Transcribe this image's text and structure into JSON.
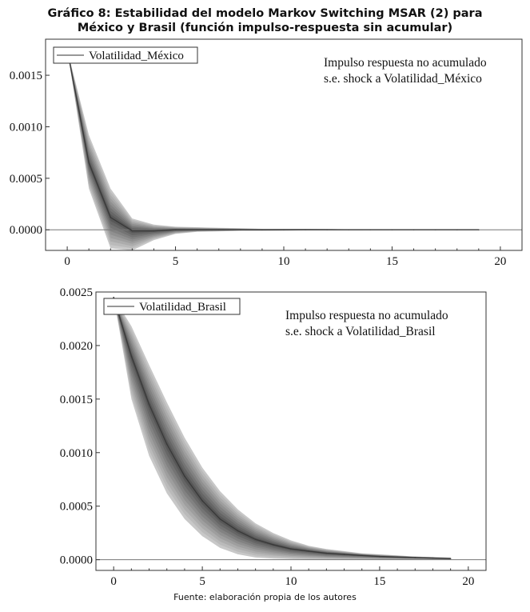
{
  "figure": {
    "title_line1": "Gráfico 8: Estabilidad del modelo Markov Switching MSAR (2) para",
    "title_line2": "México y Brasil (función impulso-respuesta sin acumular)",
    "source": "Fuente: elaboración propia de los autores"
  },
  "chart_data": [
    {
      "type": "area",
      "legend": "Volatilidad_México",
      "legend_position": "top-left",
      "annotation_line1": "Impulso respuesta no acumulado",
      "annotation_line2": "s.e. shock a Volatilidad_México",
      "xlim": [
        -1,
        21
      ],
      "ylim": [
        -0.0002,
        0.00185
      ],
      "xticks": [
        0,
        5,
        10,
        15,
        20
      ],
      "xtick_labels": [
        "0",
        "5",
        "10",
        "15",
        "20"
      ],
      "yticks": [
        0.0,
        0.0005,
        0.001,
        0.0015
      ],
      "ytick_labels": [
        "0.0000",
        "0.0005",
        "0.0010",
        "0.0015"
      ],
      "grid": false,
      "x": [
        0,
        1,
        2,
        3,
        4,
        5,
        6,
        7,
        8,
        9,
        10,
        11,
        12,
        13,
        14,
        15,
        16,
        17,
        18,
        19
      ],
      "values": [
        0.00175,
        0.00065,
        0.00012,
        -1e-05,
        -1e-05,
        0.0,
        0.0,
        0.0,
        0.0,
        0.0,
        0.0,
        0.0,
        0.0,
        0.0,
        0.0,
        0.0,
        0.0,
        0.0,
        0.0,
        0.0
      ],
      "band_upper": [
        0.00175,
        0.00092,
        0.0004,
        0.00011,
        5e-05,
        3e-05,
        2.5e-05,
        2e-05,
        1.5e-05,
        1e-05,
        1e-05,
        1e-05,
        8e-06,
        6e-06,
        5e-06,
        4e-06,
        3e-06,
        2e-06,
        2e-06,
        1e-06
      ],
      "band_lower": [
        0.00175,
        0.0004,
        -0.00018,
        -0.0002,
        -0.0001,
        -4e-05,
        -2e-05,
        -1.5e-05,
        -1e-05,
        -1e-05,
        -8e-06,
        -6e-06,
        -5e-06,
        -4e-06,
        -3e-06,
        -2e-06,
        -2e-06,
        -1e-06,
        -1e-06,
        -1e-06
      ],
      "zero_line": true
    },
    {
      "type": "area",
      "legend": "Volatilidad_Brasil",
      "legend_position": "top-left",
      "annotation_line1": "Impulso respuesta no acumulado",
      "annotation_line2": "s.e. shock a Volatilidad_Brasil",
      "xlim": [
        -1,
        21
      ],
      "ylim": [
        -0.0001,
        0.0025
      ],
      "xticks": [
        0,
        5,
        10,
        15,
        20
      ],
      "xtick_labels": [
        "0",
        "5",
        "10",
        "15",
        "20"
      ],
      "yticks": [
        0.0,
        0.0005,
        0.001,
        0.0015,
        0.002,
        0.0025
      ],
      "ytick_labels": [
        "0.0000",
        "0.0005",
        "0.0010",
        "0.0015",
        "0.0020",
        "0.0025"
      ],
      "grid": false,
      "x": [
        0,
        1,
        2,
        3,
        4,
        5,
        6,
        7,
        8,
        9,
        10,
        11,
        12,
        13,
        14,
        15,
        16,
        17,
        18,
        19
      ],
      "values": [
        0.00245,
        0.0019,
        0.00145,
        0.00108,
        0.00078,
        0.00055,
        0.00038,
        0.00027,
        0.00019,
        0.00014,
        0.0001,
        8e-05,
        6e-05,
        5e-05,
        4e-05,
        3e-05,
        2.5e-05,
        2e-05,
        1.5e-05,
        1e-05
      ],
      "band_upper": [
        0.00245,
        0.00218,
        0.00182,
        0.00147,
        0.00114,
        0.00086,
        0.00064,
        0.00047,
        0.00034,
        0.00025,
        0.00018,
        0.00013,
        0.0001,
        8e-05,
        6e-05,
        5e-05,
        4e-05,
        3e-05,
        2.5e-05,
        2e-05
      ],
      "band_lower": [
        0.00245,
        0.0015,
        0.00097,
        0.00062,
        0.00038,
        0.00022,
        0.00011,
        5e-05,
        2e-05,
        1e-05,
        5e-06,
        0.0,
        0.0,
        0.0,
        0.0,
        0.0,
        0.0,
        0.0,
        0.0,
        0.0
      ],
      "zero_line": true
    }
  ]
}
